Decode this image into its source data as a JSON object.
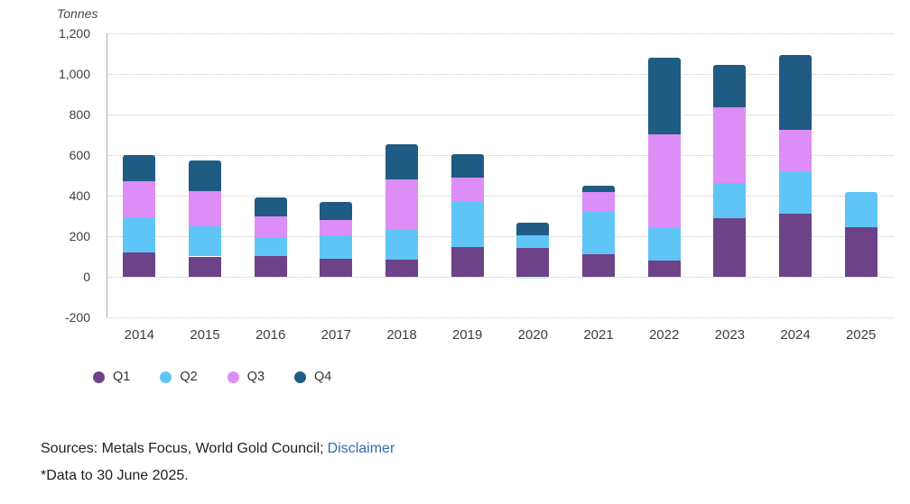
{
  "chart_data": {
    "type": "bar",
    "stacked": true,
    "unit_label": "Tonnes",
    "categories": [
      "2014",
      "2015",
      "2016",
      "2017",
      "2018",
      "2019",
      "2020",
      "2021",
      "2022",
      "2023",
      "2024",
      "2025"
    ],
    "series": [
      {
        "name": "Q1",
        "color": "#6E4287",
        "values": [
          119,
          100,
          104,
          89,
          86,
          145,
          142,
          111,
          81,
          288,
          311,
          244
        ]
      },
      {
        "name": "Q2",
        "color": "#5FC5F7",
        "values": [
          173,
          148,
          93,
          114,
          148,
          224,
          64,
          210,
          161,
          175,
          211,
          172
        ]
      },
      {
        "name": "Q3",
        "color": "#DC8DF6",
        "values": [
          179,
          174,
          99,
          75,
          246,
          118,
          -11,
          96,
          459,
          372,
          203,
          0
        ]
      },
      {
        "name": "Q4",
        "color": "#1F5B82",
        "values": [
          128,
          152,
          96,
          92,
          175,
          118,
          60,
          30,
          380,
          211,
          370,
          0
        ]
      }
    ],
    "negative_color": "#B2F6D4",
    "ylim": [
      -200,
      1200
    ],
    "yticks": [
      {
        "value": 1200,
        "label": "1,200"
      },
      {
        "value": 1000,
        "label": "1,000"
      },
      {
        "value": 800,
        "label": "800"
      },
      {
        "value": 600,
        "label": "600"
      },
      {
        "value": 400,
        "label": "400"
      },
      {
        "value": 200,
        "label": "200"
      },
      {
        "value": 0,
        "label": "0"
      },
      {
        "value": -200,
        "label": "-200"
      }
    ],
    "grid": "dotted-horizontal",
    "legend_position": "bottom-left"
  },
  "footer": {
    "sources_prefix": "Sources: Metals Focus, World Gold Council;",
    "disclaimer_label": "Disclaimer",
    "footnote": "*Data to 30 June 2025.",
    "link_color": "#2F6DA8"
  }
}
